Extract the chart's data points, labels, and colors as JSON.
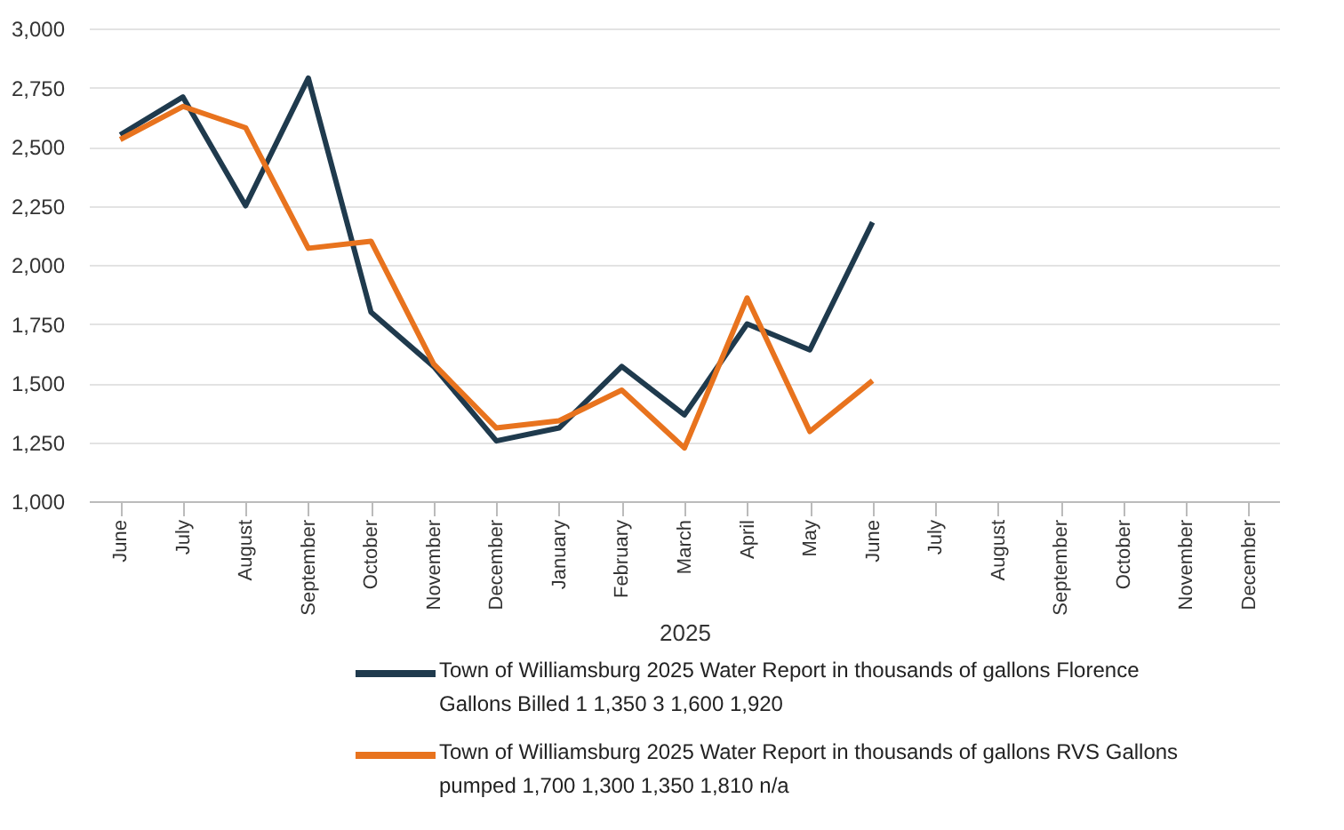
{
  "chart_data": {
    "type": "line",
    "categories": [
      "June",
      "July",
      "August",
      "September",
      "October",
      "November",
      "December",
      "January",
      "February",
      "March",
      "April",
      "May",
      "June",
      "July",
      "August",
      "September",
      "October",
      "November",
      "December"
    ],
    "xlabel": "2025",
    "series": [
      {
        "name": "Town of Williamsburg 2025 Water Report  in thousands of gallons Florence Gallons Billed 1  1,350  3  1,600  1,920",
        "color": "#1f3a4d",
        "values": [
          2550,
          2710,
          2250,
          2790,
          1800,
          1570,
          1255,
          1310,
          1570,
          1365,
          1750,
          1640,
          2180,
          null,
          null,
          null,
          null,
          null,
          null
        ]
      },
      {
        "name": "Town of Williamsburg 2025 Water Report  in thousands of gallons RVS Gallons pumped  1,700  1,300  1,350  1,810  n/a",
        "color": "#e8731e",
        "values": [
          2530,
          2670,
          2580,
          2070,
          2100,
          1580,
          1310,
          1340,
          1470,
          1225,
          1860,
          1295,
          1510,
          null,
          null,
          null,
          null,
          null,
          null
        ]
      }
    ],
    "ylim": [
      1000,
      3000
    ],
    "yticks": [
      {
        "value": 1000,
        "label": "1,000"
      },
      {
        "value": 1250,
        "label": "1,250"
      },
      {
        "value": 1500,
        "label": "1,500"
      },
      {
        "value": 1750,
        "label": "1,750"
      },
      {
        "value": 2000,
        "label": "2,000"
      },
      {
        "value": 2250,
        "label": "2,250"
      },
      {
        "value": 2500,
        "label": "2,500"
      },
      {
        "value": 2750,
        "label": "2,750"
      },
      {
        "value": 3000,
        "label": "3,000"
      }
    ],
    "grid": "y",
    "legend": "bottom",
    "marker": "none",
    "line_style": "solid"
  }
}
